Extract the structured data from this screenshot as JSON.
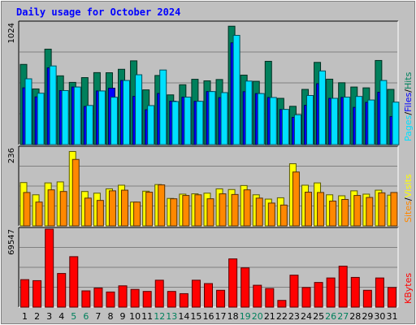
{
  "chart_data": {
    "type": "bar",
    "title": "Daily usage for October 2024",
    "categories": [
      "1",
      "2",
      "3",
      "4",
      "5",
      "6",
      "7",
      "8",
      "9",
      "10",
      "11",
      "12",
      "13",
      "14",
      "15",
      "16",
      "17",
      "18",
      "19",
      "20",
      "21",
      "22",
      "23",
      "24",
      "25",
      "26",
      "27",
      "28",
      "29",
      "30",
      "31"
    ],
    "weekend_days": [
      "5",
      "6",
      "12",
      "13",
      "19",
      "20",
      "26",
      "27"
    ],
    "panels": [
      {
        "name": "requests",
        "ymax": 1024,
        "ymax_label": "1024",
        "series": [
          {
            "name": "Hits",
            "color": "#00805c",
            "values": [
              674,
              468,
              802,
              578,
              523,
              563,
              605,
              604,
              633,
              704,
              460,
              581,
              418,
              503,
              549,
              536,
              547,
              995,
              584,
              532,
              700,
              389,
              322,
              464,
              691,
              550,
              520,
              484,
              477,
              707,
              464
            ]
          },
          {
            "name": "Files",
            "color": "#0000ff",
            "values": [
              477,
              401,
              645,
              454,
              484,
              321,
              451,
              474,
              539,
              405,
              293,
              430,
              365,
              399,
              364,
              446,
              395,
              855,
              445,
              429,
              396,
              295,
              229,
              330,
              512,
              389,
              397,
              313,
              355,
              440,
              236
            ]
          },
          {
            "name": "Pages",
            "color": "#00e0ff",
            "values": [
              553,
              432,
              661,
              454,
              484,
              329,
              451,
              398,
              539,
              587,
              328,
              627,
              362,
              399,
              364,
              446,
              437,
              918,
              534,
              429,
              396,
              296,
              251,
              413,
              619,
              389,
              399,
              405,
              375,
              539,
              357
            ]
          }
        ]
      },
      {
        "name": "visits",
        "ymax": 236,
        "ymax_label": "236",
        "series": [
          {
            "name": "Visits",
            "color": "#ffff00",
            "values": [
              131,
              94,
              130,
              133,
              225,
              104,
              99,
              112,
              123,
              72,
              105,
              125,
              83,
              96,
              97,
              99,
              112,
              110,
              122,
              94,
              81,
              85,
              188,
              123,
              130,
              94,
              91,
              106,
              96,
              108,
              93
            ]
          },
          {
            "name": "Sites",
            "color": "#ff8800",
            "values": [
              101,
              72,
              109,
              104,
              201,
              84,
              77,
              106,
              108,
              72,
              102,
              124,
              82,
              92,
              94,
              82,
              97,
              95,
              109,
              84,
              69,
              63,
              163,
              102,
              101,
              75,
              80,
              92,
              86,
              100,
              101
            ]
          }
        ]
      },
      {
        "name": "kbytes",
        "ymax": 69547,
        "ymax_label": "69547",
        "series": [
          {
            "name": "KBytes",
            "color": "#ff0000",
            "values": [
              24500,
              23600,
              69547,
              30000,
              45000,
              14500,
              17000,
              13500,
              19000,
              15800,
              14000,
              24000,
              14000,
              12000,
              24000,
              21000,
              15000,
              43000,
              35000,
              19500,
              16600,
              6000,
              28500,
              17500,
              22000,
              26000,
              36500,
              26500,
              15000,
              26000,
              17500
            ]
          }
        ]
      }
    ],
    "legend": [
      {
        "panel": "requests",
        "labels": [
          "Pages",
          "Files",
          "Hits"
        ],
        "colors": [
          "#00e0ff",
          "#0000ff",
          "#00805c"
        ]
      },
      {
        "panel": "visits",
        "labels": [
          "Sites",
          "Visits"
        ],
        "colors": [
          "#ff8800",
          "#ffff00"
        ]
      },
      {
        "panel": "kbytes",
        "labels": [
          "KBytes"
        ],
        "colors": [
          "#ff0000"
        ]
      }
    ],
    "legend_separator": "/",
    "legend_separator_color": "#000000",
    "legend_placement": "right"
  }
}
